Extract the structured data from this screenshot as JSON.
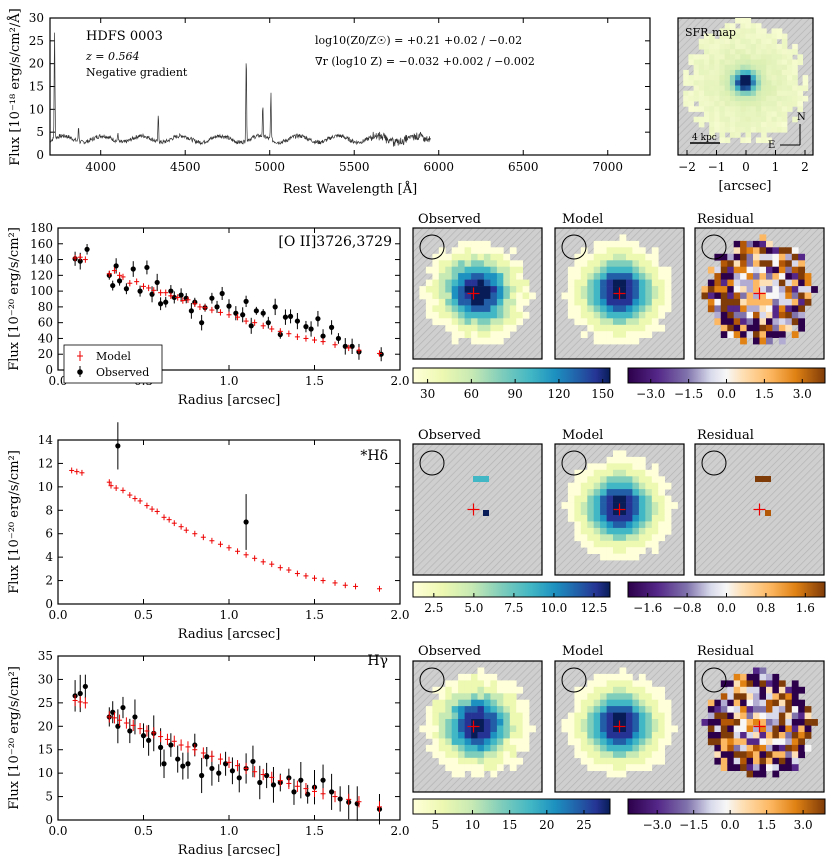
{
  "spectrum": {
    "galaxy_name": "HDFS 0003",
    "redshift_text": "z = 0.564",
    "gradient_text": "Negative gradient",
    "metallicity_text": "log10(Z0/Z☉) = +0.21 +0.02 / −0.02",
    "metallicity_value": "+0.21",
    "metallicity_err_up": "+0.02",
    "metallicity_err_down": "−0.02",
    "gradient_value_text": "∇r (log10 Z) = −0.032 +0.002 / −0.002",
    "gradient_value": "−0.032",
    "gradient_err_up": "+0.002",
    "gradient_err_down": "−0.002",
    "ylabel": "Flux [10⁻¹⁸ erg/s/cm²/Å]",
    "xlabel": "Rest Wavelength [Å]"
  },
  "sfr_map": {
    "title": "SFR map",
    "scale_label": "4 kpc",
    "north_label": "N",
    "east_label": "E",
    "xlabel": "[arcsec]",
    "xticks": [
      "−2",
      "−1",
      "0",
      "1",
      "2"
    ]
  },
  "map_titles": {
    "observed": "Observed",
    "model": "Model",
    "residual": "Residual"
  },
  "legend": {
    "model": "Model",
    "observed": "Observed"
  },
  "chart_data": [
    {
      "id": "spectrum",
      "type": "line",
      "title": "HDFS 0003",
      "xlabel": "Rest Wavelength [Å]",
      "ylabel": "Flux [10⁻¹⁸ erg/s/cm²/Å]",
      "xlim": [
        3700,
        7250
      ],
      "ylim": [
        0,
        30
      ],
      "xticks": [
        4000,
        4500,
        5000,
        5500,
        6000,
        6500,
        7000
      ],
      "yticks": [
        0,
        5,
        10,
        15,
        20,
        25,
        30
      ],
      "continuum": 3.5,
      "data_end": 5950,
      "emission_lines": [
        {
          "wave": 3727,
          "peak": 27
        },
        {
          "wave": 3869,
          "peak": 7
        },
        {
          "wave": 4102,
          "peak": 5.5
        },
        {
          "wave": 4341,
          "peak": 9.5
        },
        {
          "wave": 4861,
          "peak": 22.5
        },
        {
          "wave": 4959,
          "peak": 10
        },
        {
          "wave": 5007,
          "peak": 14
        }
      ]
    },
    {
      "id": "oii",
      "type": "scatter",
      "label": "[O II]3726,3729",
      "xlabel": "Radius [arcsec]",
      "ylabel": "Flux [10⁻²⁰ erg/s/cm²]",
      "xlim": [
        0,
        2.0
      ],
      "ylim": [
        0,
        180
      ],
      "xticks": [
        0.0,
        0.5,
        1.0,
        1.5,
        2.0
      ],
      "yticks": [
        0,
        20,
        40,
        60,
        80,
        100,
        120,
        140,
        160,
        180
      ],
      "model": [
        [
          0.1,
          142
        ],
        [
          0.13,
          143
        ],
        [
          0.16,
          140
        ],
        [
          0.3,
          122
        ],
        [
          0.33,
          126
        ],
        [
          0.36,
          120
        ],
        [
          0.38,
          118
        ],
        [
          0.42,
          110
        ],
        [
          0.46,
          112
        ],
        [
          0.5,
          106
        ],
        [
          0.53,
          104
        ],
        [
          0.56,
          101
        ],
        [
          0.6,
          98
        ],
        [
          0.63,
          98
        ],
        [
          0.66,
          94
        ],
        [
          0.7,
          92
        ],
        [
          0.73,
          88
        ],
        [
          0.76,
          89
        ],
        [
          0.8,
          84
        ],
        [
          0.83,
          80
        ],
        [
          0.86,
          79
        ],
        [
          0.9,
          76
        ],
        [
          0.95,
          73
        ],
        [
          1.0,
          70
        ],
        [
          1.05,
          67
        ],
        [
          1.1,
          62
        ],
        [
          1.15,
          60
        ],
        [
          1.2,
          56
        ],
        [
          1.25,
          52
        ],
        [
          1.3,
          49
        ],
        [
          1.35,
          46
        ],
        [
          1.4,
          42
        ],
        [
          1.45,
          40
        ],
        [
          1.5,
          38
        ],
        [
          1.55,
          36
        ],
        [
          1.62,
          32
        ],
        [
          1.7,
          28
        ],
        [
          1.76,
          25
        ],
        [
          1.88,
          21
        ]
      ],
      "observed": [
        [
          0.1,
          141
        ],
        [
          0.13,
          138
        ],
        [
          0.17,
          153
        ],
        [
          0.3,
          120
        ],
        [
          0.32,
          107
        ],
        [
          0.34,
          132
        ],
        [
          0.36,
          113
        ],
        [
          0.4,
          103
        ],
        [
          0.44,
          128
        ],
        [
          0.48,
          100
        ],
        [
          0.52,
          130
        ],
        [
          0.55,
          96
        ],
        [
          0.58,
          111
        ],
        [
          0.6,
          84
        ],
        [
          0.63,
          86
        ],
        [
          0.66,
          100
        ],
        [
          0.68,
          92
        ],
        [
          0.72,
          95
        ],
        [
          0.75,
          91
        ],
        [
          0.78,
          75
        ],
        [
          0.8,
          86
        ],
        [
          0.84,
          60
        ],
        [
          0.86,
          79
        ],
        [
          0.9,
          91
        ],
        [
          0.93,
          80
        ],
        [
          0.96,
          97
        ],
        [
          1.0,
          81
        ],
        [
          1.04,
          72
        ],
        [
          1.08,
          70
        ],
        [
          1.1,
          87
        ],
        [
          1.13,
          56
        ],
        [
          1.16,
          75
        ],
        [
          1.2,
          72
        ],
        [
          1.23,
          60
        ],
        [
          1.27,
          80
        ],
        [
          1.3,
          45
        ],
        [
          1.33,
          67
        ],
        [
          1.36,
          68
        ],
        [
          1.4,
          62
        ],
        [
          1.45,
          55
        ],
        [
          1.48,
          52
        ],
        [
          1.52,
          65
        ],
        [
          1.55,
          43
        ],
        [
          1.6,
          54
        ],
        [
          1.64,
          40
        ],
        [
          1.68,
          30
        ],
        [
          1.72,
          30
        ],
        [
          1.76,
          23
        ],
        [
          1.89,
          20
        ]
      ]
    },
    {
      "id": "hdelta",
      "type": "scatter",
      "label": "*Hδ",
      "xlabel": "Radius [arcsec]",
      "ylabel": "Flux [10⁻²⁰ erg/s/cm²]",
      "xlim": [
        0,
        2.0
      ],
      "ylim": [
        0,
        14
      ],
      "xticks": [
        0.0,
        0.5,
        1.0,
        1.5,
        2.0
      ],
      "yticks": [
        0,
        2,
        4,
        6,
        8,
        10,
        12,
        14
      ],
      "model": [
        [
          0.08,
          11.4
        ],
        [
          0.11,
          11.3
        ],
        [
          0.14,
          11.2
        ],
        [
          0.3,
          10.4
        ],
        [
          0.31,
          10.1
        ],
        [
          0.34,
          9.9
        ],
        [
          0.38,
          9.7
        ],
        [
          0.42,
          9.3
        ],
        [
          0.45,
          9.0
        ],
        [
          0.48,
          8.8
        ],
        [
          0.52,
          8.4
        ],
        [
          0.55,
          8.1
        ],
        [
          0.58,
          7.9
        ],
        [
          0.62,
          7.4
        ],
        [
          0.65,
          7.2
        ],
        [
          0.68,
          6.9
        ],
        [
          0.72,
          6.6
        ],
        [
          0.75,
          6.3
        ],
        [
          0.8,
          6.0
        ],
        [
          0.85,
          5.7
        ],
        [
          0.9,
          5.4
        ],
        [
          0.95,
          5.1
        ],
        [
          1.0,
          4.8
        ],
        [
          1.05,
          4.5
        ],
        [
          1.1,
          4.2
        ],
        [
          1.15,
          3.9
        ],
        [
          1.2,
          3.6
        ],
        [
          1.25,
          3.4
        ],
        [
          1.3,
          3.1
        ],
        [
          1.35,
          2.9
        ],
        [
          1.4,
          2.6
        ],
        [
          1.45,
          2.4
        ],
        [
          1.5,
          2.2
        ],
        [
          1.55,
          2.0
        ],
        [
          1.62,
          1.8
        ],
        [
          1.68,
          1.6
        ],
        [
          1.74,
          1.5
        ],
        [
          1.88,
          1.3
        ]
      ],
      "observed": [
        [
          0.35,
          13.5
        ],
        [
          1.1,
          7.0
        ]
      ]
    },
    {
      "id": "hgamma",
      "type": "scatter",
      "label": "Hγ",
      "xlabel": "Radius [arcsec]",
      "ylabel": "Flux [10⁻²⁰ erg/s/cm²]",
      "xlim": [
        0,
        2.0
      ],
      "ylim": [
        0,
        35
      ],
      "xticks": [
        0.0,
        0.5,
        1.0,
        1.5,
        2.0
      ],
      "yticks": [
        0,
        5,
        10,
        15,
        20,
        25,
        30,
        35
      ],
      "model": [
        [
          0.1,
          25.5
        ],
        [
          0.13,
          25.2
        ],
        [
          0.16,
          25.0
        ],
        [
          0.3,
          22.0
        ],
        [
          0.33,
          21.8
        ],
        [
          0.36,
          21.3
        ],
        [
          0.4,
          20.7
        ],
        [
          0.44,
          20.2
        ],
        [
          0.48,
          19.5
        ],
        [
          0.52,
          19.0
        ],
        [
          0.56,
          18.6
        ],
        [
          0.6,
          17.8
        ],
        [
          0.64,
          17.2
        ],
        [
          0.68,
          16.8
        ],
        [
          0.72,
          16.0
        ],
        [
          0.76,
          15.6
        ],
        [
          0.8,
          15.0
        ],
        [
          0.85,
          14.3
        ],
        [
          0.9,
          13.6
        ],
        [
          0.95,
          13.0
        ],
        [
          1.0,
          12.3
        ],
        [
          1.05,
          11.6
        ],
        [
          1.1,
          11.0
        ],
        [
          1.15,
          10.3
        ],
        [
          1.2,
          9.7
        ],
        [
          1.25,
          9.1
        ],
        [
          1.3,
          8.4
        ],
        [
          1.35,
          7.8
        ],
        [
          1.4,
          7.2
        ],
        [
          1.45,
          6.7
        ],
        [
          1.5,
          6.1
        ],
        [
          1.55,
          5.6
        ],
        [
          1.62,
          5.0
        ],
        [
          1.7,
          4.4
        ],
        [
          1.76,
          3.9
        ],
        [
          1.88,
          2.8
        ]
      ],
      "observed": [
        [
          0.1,
          26.5
        ],
        [
          0.13,
          27.0
        ],
        [
          0.16,
          28.5
        ],
        [
          0.3,
          22
        ],
        [
          0.32,
          23
        ],
        [
          0.35,
          20
        ],
        [
          0.38,
          24
        ],
        [
          0.42,
          19
        ],
        [
          0.45,
          22
        ],
        [
          0.5,
          18
        ],
        [
          0.53,
          17
        ],
        [
          0.56,
          18.5
        ],
        [
          0.6,
          15.5
        ],
        [
          0.62,
          12
        ],
        [
          0.66,
          16
        ],
        [
          0.7,
          13
        ],
        [
          0.73,
          11.5
        ],
        [
          0.76,
          12
        ],
        [
          0.8,
          16
        ],
        [
          0.84,
          9.5
        ],
        [
          0.87,
          13.5
        ],
        [
          0.9,
          11
        ],
        [
          0.94,
          10
        ],
        [
          0.98,
          12
        ],
        [
          1.02,
          10.5
        ],
        [
          1.06,
          9
        ],
        [
          1.1,
          11
        ],
        [
          1.14,
          12.5
        ],
        [
          1.18,
          8
        ],
        [
          1.22,
          9.5
        ],
        [
          1.26,
          7.5
        ],
        [
          1.3,
          8
        ],
        [
          1.35,
          9
        ],
        [
          1.38,
          6
        ],
        [
          1.42,
          8.5
        ],
        [
          1.46,
          5.5
        ],
        [
          1.5,
          7
        ],
        [
          1.55,
          8.5
        ],
        [
          1.6,
          6
        ],
        [
          1.65,
          4.5
        ],
        [
          1.7,
          3.8
        ],
        [
          1.75,
          3.5
        ],
        [
          1.88,
          2.3
        ]
      ]
    },
    {
      "id": "colorbars",
      "type": "heatmap",
      "oii_flux_ticks": [
        "30",
        "60",
        "90",
        "120",
        "150"
      ],
      "oii_flux_range": [
        20,
        155
      ],
      "oii_residual_ticks": [
        "−3.0",
        "−1.5",
        "0.0",
        "1.5",
        "3.0"
      ],
      "oii_residual_range": [
        -3.9,
        3.9
      ],
      "hdelta_flux_ticks": [
        "2.5",
        "5.0",
        "7.5",
        "10.0",
        "12.5"
      ],
      "hdelta_flux_range": [
        1.2,
        13.5
      ],
      "hdelta_residual_ticks": [
        "−1.6",
        "−0.8",
        "0.0",
        "0.8",
        "1.6"
      ],
      "hdelta_residual_range": [
        -2.0,
        2.0
      ],
      "hgamma_flux_ticks": [
        "5",
        "10",
        "15",
        "20",
        "25"
      ],
      "hgamma_flux_range": [
        2,
        28.5
      ],
      "hgamma_residual_ticks": [
        "−3.0",
        "−1.5",
        "0.0",
        "1.5",
        "3.0"
      ],
      "hgamma_residual_range": [
        -4.2,
        3.9
      ]
    }
  ]
}
